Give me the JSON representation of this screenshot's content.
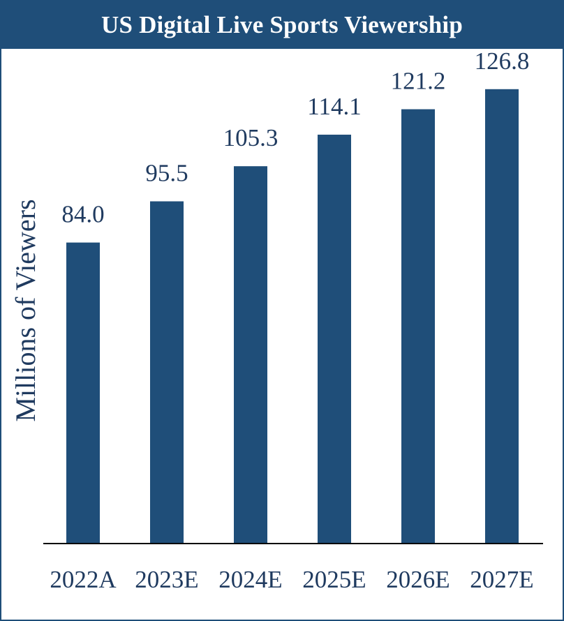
{
  "chart_data": {
    "type": "bar",
    "title": "US Digital Live Sports Viewership",
    "xlabel": "",
    "ylabel": "Millions of Viewers",
    "categories": [
      "2022A",
      "2023E",
      "2024E",
      "2025E",
      "2026E",
      "2027E"
    ],
    "values": [
      84.0,
      95.5,
      105.3,
      114.1,
      121.2,
      126.8
    ],
    "value_labels": [
      "84.0",
      "95.5",
      "105.3",
      "114.1",
      "121.2",
      "126.8"
    ],
    "ylim": [
      0,
      140
    ],
    "grid": false,
    "legend": "none",
    "colors": {
      "bar": "#1f4e79",
      "title_bg": "#1f4e79",
      "text": "#1f3a5f"
    }
  }
}
